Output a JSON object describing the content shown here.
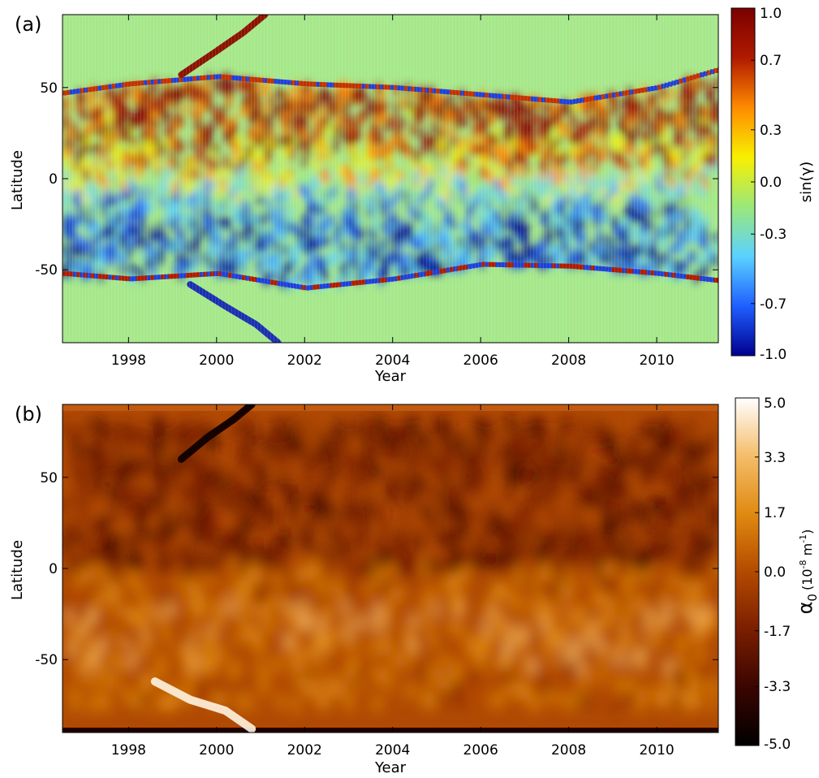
{
  "chart_data": [
    {
      "type": "heatmap",
      "panel_label": "(a)",
      "xlabel": "Year",
      "ylabel": "Latitude",
      "xlim": [
        1996.5,
        2011.4
      ],
      "ylim": [
        -90,
        90
      ],
      "x_ticks": [
        "1998",
        "2000",
        "2002",
        "2004",
        "2006",
        "2008",
        "2010"
      ],
      "x_tick_values": [
        1998,
        2000,
        2002,
        2004,
        2006,
        2008,
        2010
      ],
      "y_ticks": [
        "50",
        "0",
        "-50"
      ],
      "y_tick_values": [
        50,
        0,
        -50
      ],
      "colorbar": {
        "label": "sin(γ)",
        "ticks": [
          "1.0",
          "0.7",
          "0.3",
          "0.0",
          "-0.3",
          "-0.7",
          "-1.0"
        ],
        "tick_values": [
          1.0,
          0.7,
          0.3,
          0.0,
          -0.3,
          -0.7,
          -1.0
        ],
        "range": [
          -1.0,
          1.0
        ],
        "colors": [
          "#00008f",
          "#1f5fff",
          "#5ad2ff",
          "#9be87a",
          "#f8f000",
          "#ff8a00",
          "#b01a00",
          "#7a0000"
        ]
      },
      "background_color": "#a6e88a",
      "band_north_edge": [
        [
          1996.5,
          47
        ],
        [
          1998,
          52
        ],
        [
          2000,
          56
        ],
        [
          2002,
          52
        ],
        [
          2004,
          50
        ],
        [
          2006,
          46
        ],
        [
          2008,
          42
        ],
        [
          2010,
          50
        ],
        [
          2011.4,
          60
        ]
      ],
      "band_south_edge": [
        [
          1996.5,
          -52
        ],
        [
          1998,
          -55
        ],
        [
          2000,
          -52
        ],
        [
          2002,
          -60
        ],
        [
          2004,
          -55
        ],
        [
          2006,
          -47
        ],
        [
          2008,
          -48
        ],
        [
          2010,
          -52
        ],
        [
          2011.4,
          -56
        ]
      ],
      "polar_branch_north": [
        [
          1999.2,
          57
        ],
        [
          2000,
          70
        ],
        [
          2000.6,
          80
        ],
        [
          2001.1,
          90
        ]
      ],
      "polar_branch_south": [
        [
          1999.4,
          -58
        ],
        [
          2000.2,
          -70
        ],
        [
          2000.9,
          -80
        ],
        [
          2001.4,
          -90
        ]
      ]
    },
    {
      "type": "heatmap",
      "panel_label": "(b)",
      "xlabel": "Year",
      "ylabel": "Latitude",
      "xlim": [
        1996.5,
        2011.4
      ],
      "ylim": [
        -90,
        90
      ],
      "x_ticks": [
        "1998",
        "2000",
        "2002",
        "2004",
        "2006",
        "2008",
        "2010"
      ],
      "x_tick_values": [
        1998,
        2000,
        2002,
        2004,
        2006,
        2008,
        2010
      ],
      "y_ticks": [
        "50",
        "0",
        "-50"
      ],
      "y_tick_values": [
        50,
        0,
        -50
      ],
      "colorbar": {
        "label_symbol": "α",
        "label_subscript": "0",
        "label_units": "(10",
        "label_units_exp": "-8",
        "label_units_rest": " m",
        "label_units_exp2": "-1",
        "label_units_close": ")",
        "ticks": [
          "5.0",
          "3.3",
          "1.7",
          "0.0",
          "-1.7",
          "-3.3",
          "-5.0"
        ],
        "tick_values": [
          5.0,
          3.3,
          1.7,
          0.0,
          -1.7,
          -3.3,
          -5.0
        ],
        "range": [
          -5.0,
          5.0
        ],
        "colors": [
          "#000000",
          "#3a0500",
          "#7a1e00",
          "#b44a00",
          "#e08a10",
          "#f5bd6a",
          "#ffffff"
        ]
      },
      "background_color": "#b04a04",
      "bright_streak": [
        [
          1998.6,
          -62
        ],
        [
          1999.4,
          -72
        ],
        [
          2000.2,
          -78
        ],
        [
          2000.8,
          -88
        ]
      ],
      "dark_streak": [
        [
          1999.2,
          60
        ],
        [
          1999.8,
          72
        ],
        [
          2000.4,
          82
        ],
        [
          2000.8,
          90
        ]
      ]
    }
  ]
}
